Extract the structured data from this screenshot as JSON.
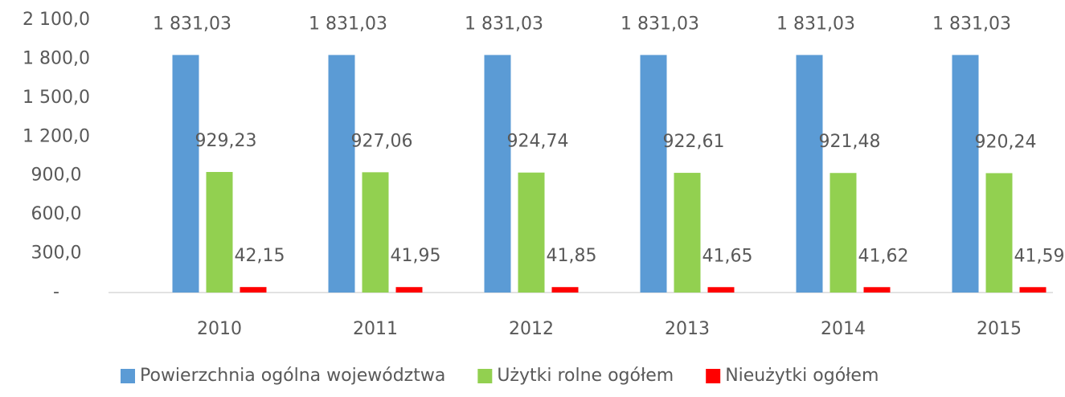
{
  "chart_data": {
    "type": "bar",
    "categories": [
      "2010",
      "2011",
      "2012",
      "2013",
      "2014",
      "2015"
    ],
    "series": [
      {
        "name": "Powierzchnia ogólna województwa",
        "color": "#5b9bd5",
        "values": [
          1831.03,
          1831.03,
          1831.03,
          1831.03,
          1831.03,
          1831.03
        ],
        "value_labels": [
          "1 831,03",
          "1 831,03",
          "1 831,03",
          "1 831,03",
          "1 831,03",
          "1 831,03"
        ]
      },
      {
        "name": "Użytki rolne ogółem",
        "color": "#92d050",
        "values": [
          929.23,
          927.06,
          924.74,
          922.61,
          921.48,
          920.24
        ],
        "value_labels": [
          "929,23",
          "927,06",
          "924,74",
          "922,61",
          "921,48",
          "920,24"
        ]
      },
      {
        "name": "Nieużytki ogółem",
        "color": "#ff0000",
        "values": [
          42.15,
          41.95,
          41.85,
          41.65,
          41.62,
          41.59
        ],
        "value_labels": [
          "42,15",
          "41,95",
          "41,85",
          "41,65",
          "41,62",
          "41,59"
        ]
      }
    ],
    "ylim": [
      0,
      2100
    ],
    "yticks": [
      {
        "value": 0,
        "label": "-"
      },
      {
        "value": 300,
        "label": "300,0"
      },
      {
        "value": 600,
        "label": "600,0"
      },
      {
        "value": 900,
        "label": "900,0"
      },
      {
        "value": 1200,
        "label": "1 200,0"
      },
      {
        "value": 1500,
        "label": "1 500,0"
      },
      {
        "value": 1800,
        "label": "1 800,0"
      },
      {
        "value": 2100,
        "label": "2 100,0"
      }
    ],
    "grid": false,
    "legend": "bottom"
  }
}
